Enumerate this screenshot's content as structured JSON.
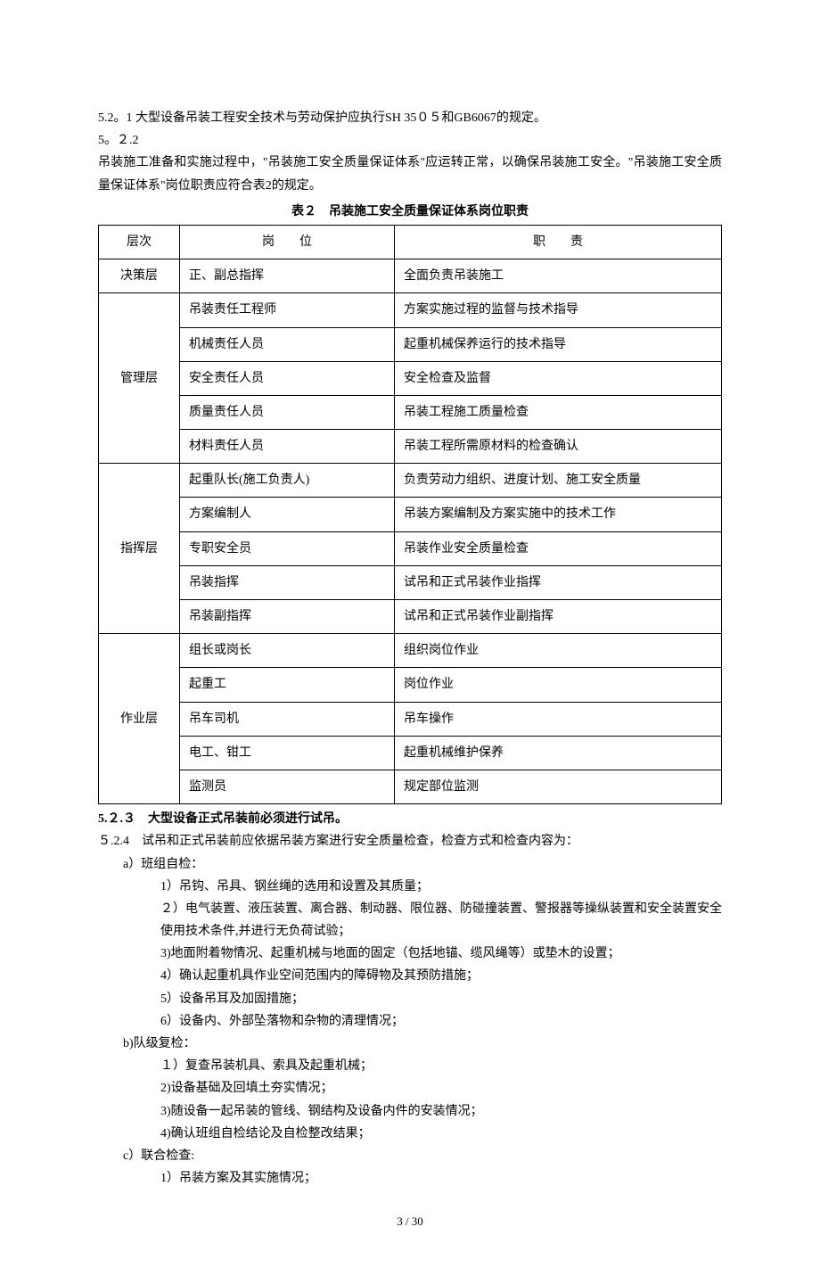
{
  "section521": "5.2。1 大型设备吊装工程安全技术与劳动保护应执行SH 35０５和GB6067的规定。",
  "section522_heading": "5。２.2",
  "section522_body": "吊装施工准备和实施过程中，\"吊装施工安全质量保证体系\"应运转正常，以确保吊装施工安全。\"吊装施工安全质量保证体系\"岗位职责应符合表2的规定。",
  "table_caption": "表２　吊装施工安全质量保证体系岗位职责",
  "table": {
    "headers": {
      "level": "层次",
      "post": "岗　　位",
      "duty": "职　　责"
    },
    "groups": [
      {
        "level": "决策层",
        "rows": [
          {
            "post": "正、副总指挥",
            "duty": "全面负责吊装施工"
          }
        ]
      },
      {
        "level": "管理层",
        "rows": [
          {
            "post": "吊装责任工程师",
            "duty": "方案实施过程的监督与技术指导"
          },
          {
            "post": "机械责任人员",
            "duty": "起重机械保养运行的技术指导"
          },
          {
            "post": "安全责任人员",
            "duty": "安全检查及监督"
          },
          {
            "post": "质量责任人员",
            "duty": "吊装工程施工质量检查"
          },
          {
            "post": "材料责任人员",
            "duty": "吊装工程所需原材料的检查确认"
          }
        ]
      },
      {
        "level": "指挥层",
        "rows": [
          {
            "post": "起重队长(施工负责人)",
            "duty": "负责劳动力组织、进度计划、施工安全质量"
          },
          {
            "post": "方案编制人",
            "duty": "吊装方案编制及方案实施中的技术工作"
          },
          {
            "post": "专职安全员",
            "duty": "吊装作业安全质量检查"
          },
          {
            "post": "吊装指挥",
            "duty": "试吊和正式吊装作业指挥"
          },
          {
            "post": "吊装副指挥",
            "duty": "试吊和正式吊装作业副指挥"
          }
        ]
      },
      {
        "level": "作业层",
        "rows": [
          {
            "post": "组长或岗长",
            "duty": "组织岗位作业"
          },
          {
            "post": "起重工",
            "duty": "岗位作业"
          },
          {
            "post": "吊车司机",
            "duty": "吊车操作"
          },
          {
            "post": "电工、钳工",
            "duty": "起重机械维护保养"
          },
          {
            "post": "监测员",
            "duty": "规定部位监测"
          }
        ]
      }
    ]
  },
  "section523": "5.２.３　大型设备正式吊装前必须进行试吊。",
  "section524_head": "５.2.4　试吊和正式吊装前应依据吊装方案进行安全质量检查，检查方式和检查内容为：",
  "a_head": "a）班组自检：",
  "a_items": [
    "1）吊钩、吊具、钢丝绳的选用和设置及其质量；",
    "２）电气装置、液压装置、离合器、制动器、限位器、防碰撞装置、警报器等操纵装置和安全装置安全使用技术条件,并进行无负荷试验；",
    "3)地面附着物情况、起重机械与地面的固定（包括地锚、缆风绳等）或垫木的设置；",
    "4）确认起重机具作业空间范围内的障碍物及其预防措施；",
    "5）设备吊耳及加固措施；",
    "6）设备内、外部坠落物和杂物的清理情况；"
  ],
  "b_head": "b)队级复检：",
  "b_items": [
    "１）复查吊装机具、索具及起重机械；",
    "2)设备基础及回填土夯实情况；",
    "3)随设备一起吊装的管线、钢结构及设备内件的安装情况；",
    "4)确认班组自检结论及自检整改结果；"
  ],
  "c_head": "c）联合检查:",
  "c_items": [
    "1）吊装方案及其实施情况；"
  ],
  "page_number": "3 / 30"
}
